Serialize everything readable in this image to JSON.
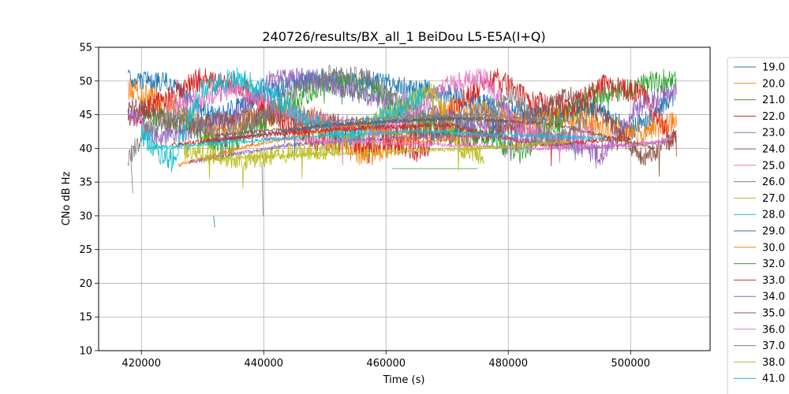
{
  "chart_data": {
    "type": "line",
    "title": "240726/results/BX_all_1 BeiDou L5-E5A(I+Q)",
    "xlabel": "Time (s)",
    "ylabel": "CNo dB Hz",
    "xlim": [
      413000,
      513000
    ],
    "ylim": [
      10,
      55
    ],
    "xticks": [
      420000,
      440000,
      460000,
      480000,
      500000
    ],
    "yticks": [
      10,
      15,
      20,
      25,
      30,
      35,
      40,
      45,
      50,
      55
    ],
    "grid": true,
    "legend_position": "right-outside",
    "series": [
      {
        "name": "19.0",
        "color": "#1f77b4",
        "segments": [
          {
            "x": [
              417800,
              425000,
              432000,
              440000,
              448000,
              455000,
              462000,
              470000,
              478000,
              486000,
              494000,
              500000,
              507000
            ],
            "y": [
              50.3,
              49.6,
              44.5,
              47.8,
              50.6,
              50.2,
              49.4,
              48.0,
              46.0,
              44.5,
              46.0,
              42.5,
              47.5
            ],
            "amp": 1.6,
            "seed": 19
          },
          {
            "x": [
              431800,
              432000
            ],
            "y": [
              30,
              28.3
            ],
            "amp": 0,
            "seed": 191
          }
        ]
      },
      {
        "name": "20.0",
        "color": "#ff7f0e",
        "segments": [
          {
            "x": [
              417800,
              424000,
              431000,
              437000,
              443000,
              450000,
              456000,
              463000,
              470000,
              476000,
              482000,
              490000,
              496000,
              502000,
              507500
            ],
            "y": [
              48.5,
              47.0,
              42.0,
              44.0,
              45.5,
              44.0,
              39.0,
              41.0,
              46.0,
              45.0,
              43.5,
              45.0,
              43.0,
              42.0,
              44.5
            ],
            "amp": 2.0,
            "seed": 20
          }
        ]
      },
      {
        "name": "21.0",
        "color": "#2ca02c",
        "segments": [
          {
            "x": [
              420000,
              428000,
              434000,
              440000,
              446000,
              452000,
              458000,
              464000,
              470000,
              476000,
              482000,
              488000,
              494000,
              500000,
              507500
            ],
            "y": [
              45.5,
              43.0,
              40.0,
              44.0,
              48.0,
              49.8,
              48.5,
              44.5,
              42.5,
              42.0,
              39.5,
              44.0,
              48.0,
              49.0,
              50.5
            ],
            "amp": 1.8,
            "seed": 21
          }
        ]
      },
      {
        "name": "22.0",
        "color": "#d62728",
        "segments": [
          {
            "x": [
              417800,
              424000,
              430000,
              436000,
              442000,
              448000,
              454000,
              460000,
              466000,
              472000,
              478000,
              484000,
              490000,
              496000,
              502000,
              507500
            ],
            "y": [
              44.0,
              47.5,
              50.5,
              49.5,
              44.5,
              41.5,
              40.5,
              41.0,
              39.5,
              47.0,
              50.5,
              47.0,
              46.0,
              49.5,
              48.0,
              40.5
            ],
            "amp": 1.8,
            "seed": 22
          }
        ]
      },
      {
        "name": "23.0",
        "color": "#9467bd",
        "segments": [
          {
            "x": [
              417800,
              423000,
              429000,
              435000,
              441000,
              447000,
              453000,
              459000,
              465000,
              471000,
              477000,
              483000,
              489000,
              495000,
              501000,
              507500
            ],
            "y": [
              45.5,
              41.5,
              43.0,
              44.5,
              50.0,
              50.5,
              49.0,
              47.0,
              46.5,
              44.0,
              43.5,
              42.0,
              41.0,
              39.0,
              46.0,
              48.5
            ],
            "amp": 1.6,
            "seed": 23
          }
        ]
      },
      {
        "name": "24.0",
        "color": "#8c564b",
        "segments": [
          {
            "x": [
              417800,
              426000,
              434000,
              442000,
              450000,
              458000,
              466000,
              474000,
              482000,
              490000,
              496000,
              502000,
              507500
            ],
            "y": [
              46.5,
              43.5,
              44.0,
              45.0,
              44.0,
              43.0,
              42.5,
              41.5,
              44.0,
              48.0,
              44.5,
              38.5,
              41.5
            ],
            "amp": 1.5,
            "seed": 24
          }
        ]
      },
      {
        "name": "25.0",
        "color": "#e377c2",
        "segments": [
          {
            "x": [
              424000,
              430000,
              436000,
              442000,
              450000,
              458000,
              464000,
              470000,
              476000,
              482000,
              488000,
              494000
            ],
            "y": [
              46.0,
              47.5,
              49.0,
              46.0,
              44.0,
              42.5,
              45.0,
              49.5,
              50.5,
              43.0,
              41.0,
              42.5
            ],
            "amp": 1.6,
            "seed": 25
          }
        ]
      },
      {
        "name": "26.0",
        "color": "#7f7f7f",
        "segments": [
          {
            "x": [
              417800,
              421000,
              427000,
              433000,
              439000,
              445000,
              451000,
              457000,
              463000,
              469000,
              475000,
              481000,
              487000,
              493000
            ],
            "y": [
              38.5,
              43.0,
              45.0,
              41.5,
              44.0,
              48.5,
              51.0,
              50.5,
              46.0,
              44.0,
              45.0,
              48.0,
              40.5,
              44.5
            ],
            "amp": 1.5,
            "seed": 26
          },
          {
            "x": [
              418300,
              418600
            ],
            "y": [
              38,
              33.3
            ],
            "amp": 0,
            "seed": 261
          },
          {
            "x": [
              439700,
              439900
            ],
            "y": [
              38,
              30
            ],
            "amp": 0,
            "seed": 262
          }
        ]
      },
      {
        "name": "27.0",
        "color": "#bcbd22",
        "segments": [
          {
            "x": [
              427000,
              432000,
              437000,
              444000,
              452000,
              458000,
              464000,
              468000,
              472000,
              476000
            ],
            "y": [
              39.5,
              39.0,
              38.0,
              39.5,
              40.0,
              44.0,
              47.0,
              48.5,
              40.0,
              39.0
            ],
            "amp": 1.5,
            "seed": 27
          }
        ]
      },
      {
        "name": "28.0",
        "color": "#17becf",
        "segments": [
          {
            "x": [
              420000,
              425000,
              430000,
              436000,
              442000,
              448000,
              454000,
              460000,
              466000
            ],
            "y": [
              42.0,
              38.0,
              49.0,
              50.5,
              47.5,
              43.5,
              41.5,
              45.0,
              47.5
            ],
            "amp": 1.8,
            "seed": 28
          }
        ]
      },
      {
        "name": "29.0",
        "color": "#1f77b4",
        "segments": [
          {
            "x": [
              430000,
              440000,
              450000,
              460000,
              470000,
              480000
            ],
            "y": [
              41.0,
              42.0,
              43.5,
              44.0,
              44.5,
              44.0
            ],
            "amp": 0.3,
            "seed": 29
          }
        ]
      },
      {
        "name": "30.0",
        "color": "#ff7f0e",
        "segments": [
          {
            "x": [
              426000,
              436000,
              446000,
              456000,
              466000,
              476000
            ],
            "y": [
              37.5,
              40.0,
              42.0,
              43.5,
              41.0,
              42.0
            ],
            "amp": 0.3,
            "seed": 30
          }
        ]
      },
      {
        "name": "32.0",
        "color": "#2ca02c",
        "segments": [
          {
            "x": [
              461000,
              475000
            ],
            "y": [
              37.0,
              37.0
            ],
            "amp": 0,
            "seed": 32
          }
        ]
      },
      {
        "name": "33.0",
        "color": "#d62728",
        "segments": [
          {
            "x": [
              425000,
              440000,
              455000,
              470000,
              485000,
              500000
            ],
            "y": [
              40.5,
              42.0,
              43.0,
              43.5,
              40.5,
              41.5
            ],
            "amp": 0.4,
            "seed": 33
          }
        ]
      },
      {
        "name": "34.0",
        "color": "#9467bd",
        "segments": [
          {
            "x": [
              428000,
              444000,
              460000,
              476000,
              492000,
              506000
            ],
            "y": [
              38.0,
              40.5,
              41.5,
              42.0,
              40.0,
              41.0
            ],
            "amp": 0.3,
            "seed": 34
          }
        ]
      },
      {
        "name": "35.0",
        "color": "#8c564b",
        "segments": [
          {
            "x": [
              432000,
              446000,
              460000,
              474000,
              488000,
              504000
            ],
            "y": [
              42.0,
              43.0,
              44.0,
              44.5,
              43.5,
              40.0
            ],
            "amp": 0.3,
            "seed": 35
          }
        ]
      },
      {
        "name": "36.0",
        "color": "#e377c2",
        "segments": [
          {
            "x": [
              440000,
              455000,
              470000,
              485000,
              500000,
              507000
            ],
            "y": [
              41.5,
              41.0,
              40.5,
              40.0,
              40.5,
              41.5
            ],
            "amp": 0.3,
            "seed": 36
          }
        ]
      },
      {
        "name": "37.0",
        "color": "#7f7f7f",
        "segments": [
          {
            "x": [
              445000,
              460000,
              475000,
              490000
            ],
            "y": [
              43.5,
              44.5,
              45.0,
              44.0
            ],
            "amp": 0.3,
            "seed": 37
          }
        ]
      },
      {
        "name": "38.0",
        "color": "#bcbd22",
        "segments": [
          {
            "x": [
              430000,
              445000,
              460000,
              475000,
              490000
            ],
            "y": [
              38.5,
              39.0,
              39.5,
              40.0,
              41.0
            ],
            "amp": 0.3,
            "seed": 38
          }
        ]
      },
      {
        "name": "41.0",
        "color": "#17becf",
        "segments": [
          {
            "x": [
              421000,
              436000,
              451000,
              466000,
              481000,
              496000
            ],
            "y": [
              40.0,
              41.0,
              42.0,
              42.5,
              42.0,
              41.5
            ],
            "amp": 0.3,
            "seed": 41
          }
        ]
      }
    ]
  }
}
